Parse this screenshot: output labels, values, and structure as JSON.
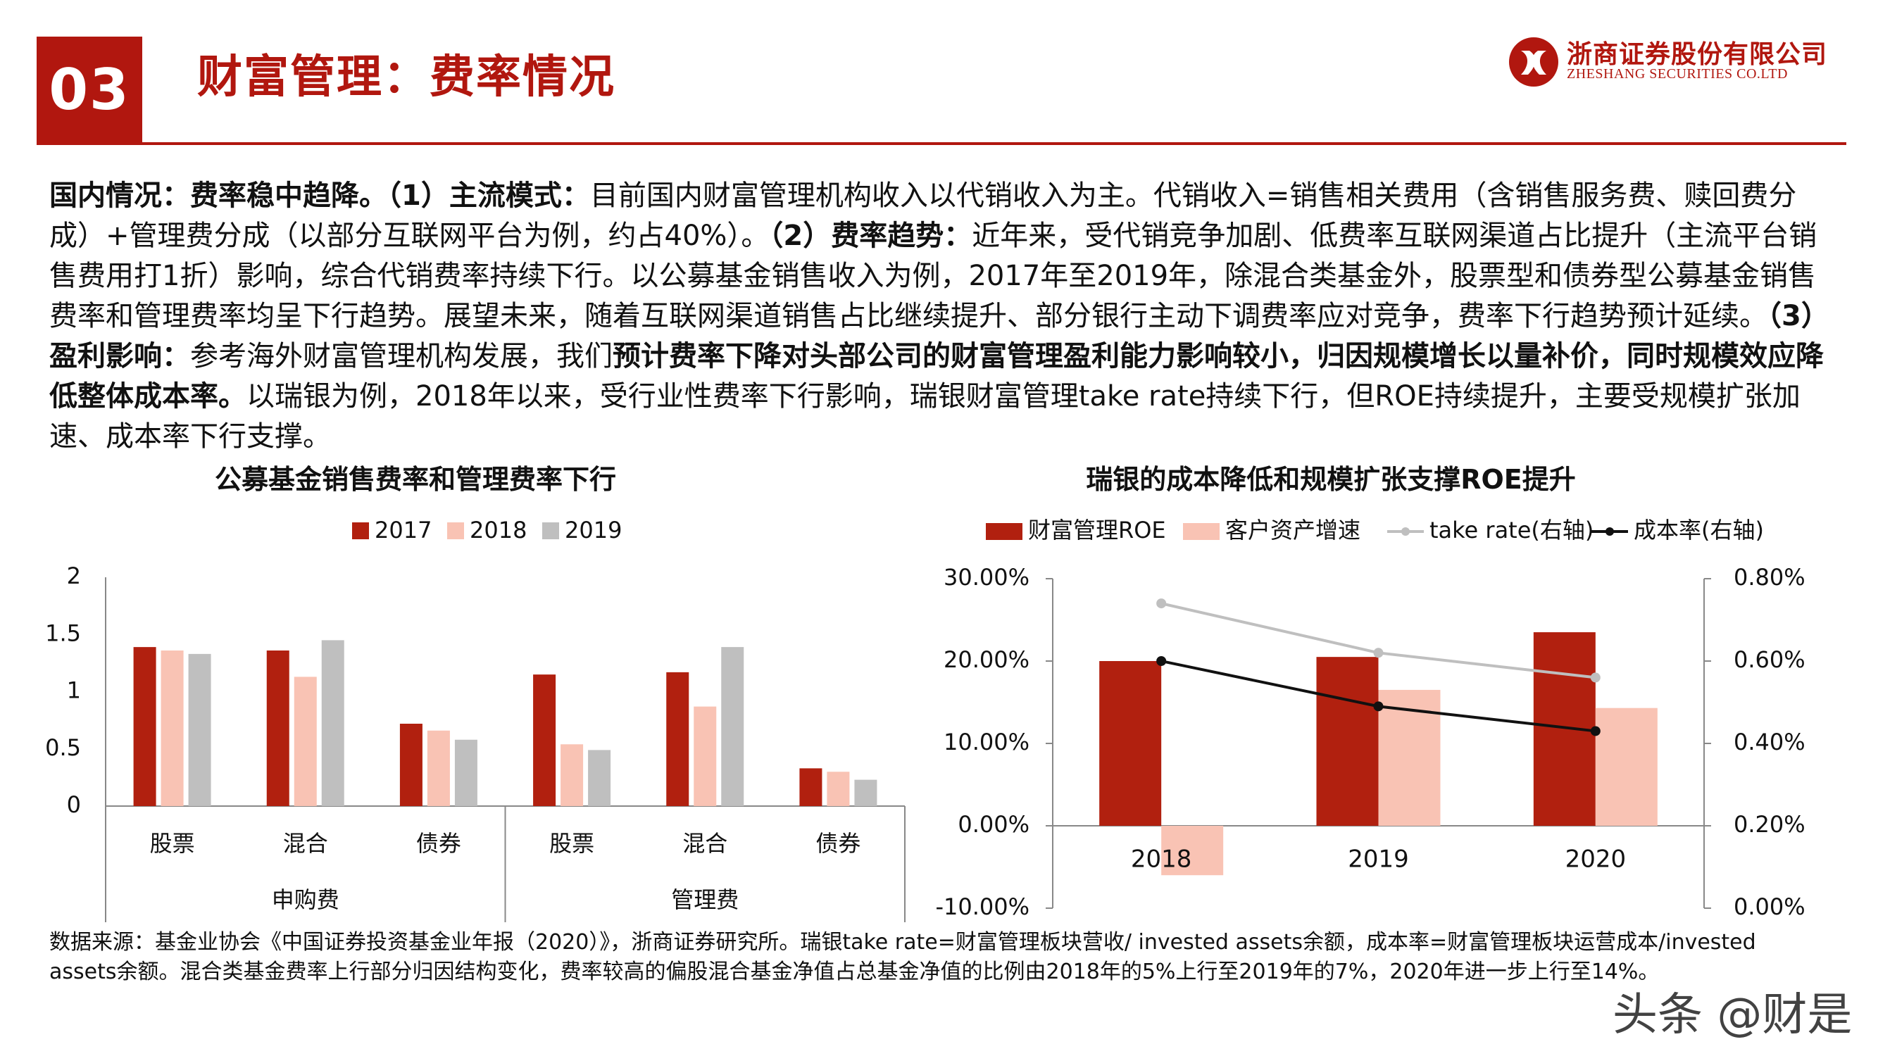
{
  "header": {
    "section_number": "03",
    "title": "财富管理：费率情况",
    "company_cn": "浙商证券股份有限公司",
    "company_en": "ZHESHANG SECURITIES CO.LTD",
    "brand_color": "#b1170f"
  },
  "body": {
    "p1_bold": "国内情况：费率稳中趋降。（1）主流模式：",
    "p1": "目前国内财富管理机构收入以代销收入为主。代销收入=销售相关费用（含销售服务费、赎回费分成）+管理费分成（以部分互联网平台为例，约占40%）。",
    "p2_bold": "（2）费率趋势：",
    "p2": "近年来，受代销竞争加剧、低费率互联网渠道占比提升（主流平台销售费用打1折）影响，综合代销费率持续下行。以公募基金销售收入为例，2017年至2019年，除混合类基金外，股票型和债券型公募基金销售费率和管理费率均呈下行趋势。展望未来，随着互联网渠道销售占比继续提升、部分银行主动下调费率应对竞争，费率下行趋势预计延续。",
    "p3_bold": "（3）盈利影响：",
    "p3": "参考海外财富管理机构发展，我们",
    "p3_bold2": "预计费率下降对头部公司的财富管理盈利能力影响较小，归因规模增长以量补价，同时规模效应降低整体成本率。",
    "p3_end": "以瑞银为例，2018年以来，受行业性费率下行影响，瑞银财富管理take rate持续下行，但ROE持续提升，主要受规模扩张加速、成本率下行支撑。"
  },
  "chart_data": [
    {
      "type": "bar",
      "title": "公募基金销售费率和管理费率下行",
      "categories": [
        "股票",
        "混合",
        "债券",
        "股票",
        "混合",
        "债券"
      ],
      "groups": [
        {
          "label": "申购费",
          "categories": [
            "股票",
            "混合",
            "债券"
          ]
        },
        {
          "label": "管理费",
          "categories": [
            "股票",
            "混合",
            "债券"
          ]
        }
      ],
      "series": [
        {
          "name": "2017",
          "color": "#b1200f",
          "values": [
            1.39,
            1.36,
            0.72,
            1.15,
            1.17,
            0.33
          ]
        },
        {
          "name": "2018",
          "color": "#f9c3b4",
          "values": [
            1.36,
            1.13,
            0.66,
            0.54,
            0.87,
            0.3
          ]
        },
        {
          "name": "2019",
          "color": "#bfbfbf",
          "values": [
            1.33,
            1.45,
            0.58,
            0.49,
            1.39,
            0.23
          ]
        }
      ],
      "ylim": [
        0,
        2
      ],
      "yticks": [
        "0",
        "0.5",
        "1",
        "1.5",
        "2"
      ],
      "legend": "top"
    },
    {
      "type": "bar",
      "title": "瑞银的成本降低和规模扩张支撑ROE提升",
      "categories": [
        "2018",
        "2019",
        "2020"
      ],
      "series": [
        {
          "name": "财富管理ROE",
          "kind": "bar",
          "axis": "left",
          "color": "#b1200f",
          "values": [
            20.0,
            20.5,
            23.5
          ]
        },
        {
          "name": "客户资产增速",
          "kind": "bar",
          "axis": "left",
          "color": "#f9c3b4",
          "values": [
            -6.0,
            16.5,
            14.3
          ]
        },
        {
          "name": "take rate(右轴)",
          "kind": "line",
          "axis": "right",
          "color": "#bfbfbf",
          "values": [
            0.74,
            0.62,
            0.56
          ]
        },
        {
          "name": "成本率(右轴)",
          "kind": "line",
          "axis": "right",
          "color": "#111111",
          "values": [
            0.6,
            0.49,
            0.43
          ]
        }
      ],
      "ylim": [
        -10,
        30
      ],
      "yticks": [
        "-10.00%",
        "0.00%",
        "10.00%",
        "20.00%",
        "30.00%"
      ],
      "y2lim": [
        0,
        0.8
      ],
      "y2ticks": [
        "0.00%",
        "0.20%",
        "0.40%",
        "0.60%",
        "0.80%"
      ],
      "legend": "top"
    }
  ],
  "footnote": "数据来源：基金业协会《中国证券投资基金业年报（2020）》，浙商证券研究所。瑞银take rate=财富管理板块营收/ invested assets余额，成本率=财富管理板块运营成本/invested  assets余额。混合类基金费率上行部分归因结构变化，费率较高的偏股混合基金净值占总基金净值的比例由2018年的5%上行至2019年的7%，2020年进一步上行至14%。",
  "watermark": "头条 @财是"
}
